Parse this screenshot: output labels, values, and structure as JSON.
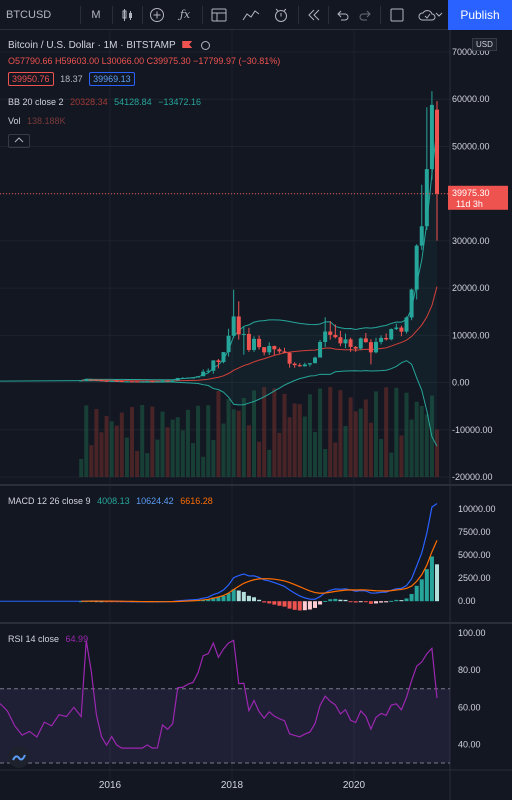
{
  "toolbar": {
    "symbol": "BTCUSD",
    "interval": "M",
    "publish_label": "Publish",
    "icons": [
      "candles-icon",
      "add-indicator-icon",
      "fx-icon",
      "template-icon",
      "alert-icon",
      "replay-icon",
      "undo-icon",
      "redo-icon",
      "layout-icon",
      "cloud-save-icon"
    ]
  },
  "header": {
    "title": "Bitcoin / U.S. Dollar · 1M · BITSTAMP",
    "ohlc": "O57790.66 H59603.00 L30066.00 C39975.30 −17799.97 (−30.81%)",
    "bid": "39950.76",
    "spread": "18.37",
    "ask": "39969.13",
    "bb_name": "BB 20 close 2",
    "bb_values": [
      "20328.34",
      "54128.84",
      "−13472.16"
    ],
    "vol_name": "Vol",
    "vol_value": "138.188K",
    "price_label": "39975.30",
    "price_countdown": "11d 3h",
    "currency": "USD"
  },
  "macd_legend": {
    "name": "MACD 12 26 close 9",
    "values": [
      "4008.13",
      "10624.42",
      "6616.28"
    ]
  },
  "rsi_legend": {
    "name": "RSI 14 close",
    "value": "64.99"
  },
  "colors": {
    "up": "#26a69a",
    "down": "#ef5350",
    "bb_band": "#26a69a",
    "bb_basis": "#d4413b",
    "macd": "#2962ff",
    "signal": "#ff6d00",
    "rsi": "#9c27b0",
    "bg": "#131722"
  },
  "chart_data": [
    {
      "type": "candlestick",
      "title": "Bitcoin / U.S. Dollar · 1M · BITSTAMP",
      "ylim": [
        -22000,
        72000
      ],
      "yticks": [
        70000,
        60000,
        50000,
        40000,
        30000,
        20000,
        10000,
        0,
        -10000,
        -20000
      ],
      "xticks": [
        "2016",
        "2018",
        "2020"
      ],
      "x_start": "2014-05",
      "candles": [
        [
          0,
          0,
          1,
          0,
          0
        ],
        [
          0,
          0,
          1,
          0,
          1
        ],
        [
          0,
          0,
          1,
          0,
          0
        ],
        [
          0,
          0,
          1,
          0,
          0
        ],
        [
          0,
          0,
          1,
          0,
          1
        ],
        [
          0,
          0,
          1,
          0,
          0
        ],
        [
          0,
          0,
          1,
          0,
          0
        ],
        [
          0,
          0,
          1,
          0,
          1
        ],
        [
          0,
          0,
          1,
          0,
          0
        ],
        [
          0,
          0,
          1,
          0,
          0
        ],
        [
          0,
          0,
          1,
          0,
          0
        ],
        [
          0,
          0,
          1,
          0,
          1
        ],
        [
          0,
          0,
          1,
          0,
          0
        ],
        [
          0,
          0,
          1,
          0,
          0
        ],
        [
          0,
          0,
          1,
          0,
          1
        ],
        [
          0,
          0,
          1,
          0,
          0
        ],
        [
          0,
          0,
          1,
          0,
          0
        ],
        [
          0,
          0,
          1,
          0,
          1
        ],
        [
          0,
          0,
          1,
          0,
          0
        ],
        [
          0,
          1,
          1,
          0,
          1
        ],
        [
          1,
          1,
          1,
          0,
          0
        ],
        [
          1,
          1,
          1,
          0,
          1
        ],
        [
          1,
          1,
          1,
          0,
          1
        ],
        [
          1,
          1,
          1,
          1,
          1
        ],
        [
          1,
          1,
          1,
          1,
          1
        ],
        [
          1,
          1,
          1,
          1,
          1
        ],
        [
          1,
          1,
          1,
          1,
          1
        ],
        [
          1,
          1,
          1,
          1,
          1
        ],
        [
          1,
          1,
          1,
          1,
          1
        ],
        [
          1,
          1,
          1,
          1,
          1
        ],
        [
          1,
          1,
          1,
          1,
          1
        ],
        [
          1,
          1,
          1,
          1,
          1
        ],
        [
          1,
          1,
          1,
          1,
          1
        ]
      ],
      "ohlc_note": "monthly candles",
      "series_ohlc": [
        [
          420,
          450,
          410,
          440
        ],
        [
          440,
          640,
          430,
          630
        ],
        [
          630,
          650,
          560,
          580
        ],
        [
          580,
          600,
          470,
          480
        ],
        [
          480,
          510,
          380,
          390
        ],
        [
          390,
          410,
          330,
          340
        ],
        [
          340,
          420,
          300,
          380
        ],
        [
          380,
          410,
          300,
          320
        ],
        [
          320,
          330,
          160,
          220
        ],
        [
          220,
          290,
          200,
          250
        ],
        [
          250,
          300,
          220,
          240
        ],
        [
          240,
          260,
          220,
          230
        ],
        [
          230,
          260,
          210,
          230
        ],
        [
          230,
          320,
          230,
          280
        ],
        [
          280,
          300,
          200,
          230
        ],
        [
          230,
          250,
          210,
          240
        ],
        [
          240,
          500,
          230,
          420
        ],
        [
          420,
          460,
          300,
          380
        ],
        [
          380,
          440,
          340,
          430
        ],
        [
          430,
          1000,
          420,
          960
        ],
        [
          960,
          1150,
          760,
          970
        ],
        [
          970,
          1050,
          920,
          1040
        ],
        [
          1040,
          1120,
          900,
          1080
        ],
        [
          1080,
          1300,
          1060,
          1350
        ],
        [
          1350,
          2780,
          1350,
          2300
        ],
        [
          2300,
          2980,
          2100,
          2500
        ],
        [
          2500,
          4700,
          1900,
          4700
        ],
        [
          4700,
          4980,
          3000,
          4350
        ],
        [
          4350,
          6470,
          4100,
          6450
        ],
        [
          6450,
          11400,
          5500,
          9900
        ],
        [
          9900,
          19660,
          9500,
          14000
        ],
        [
          14000,
          17200,
          9100,
          10200
        ],
        [
          10200,
          11800,
          5900,
          10300
        ],
        [
          10300,
          11600,
          6500,
          6900
        ],
        [
          6900,
          9800,
          6500,
          9250
        ],
        [
          9250,
          9990,
          7000,
          7500
        ],
        [
          7500,
          6800,
          5750,
          6400
        ],
        [
          6400,
          8500,
          5850,
          7750
        ],
        [
          7750,
          7800,
          5850,
          7040
        ],
        [
          7040,
          7400,
          6200,
          6600
        ],
        [
          6600,
          7380,
          6400,
          6300
        ],
        [
          6300,
          6450,
          3160,
          4000
        ],
        [
          4000,
          4300,
          3140,
          3690
        ],
        [
          3690,
          4100,
          3350,
          3440
        ],
        [
          3440,
          4200,
          3380,
          3830
        ],
        [
          3830,
          4120,
          3390,
          4100
        ],
        [
          4100,
          5500,
          4050,
          5300
        ],
        [
          5300,
          9000,
          5300,
          8600
        ],
        [
          8600,
          13800,
          7500,
          10800
        ],
        [
          10800,
          13000,
          9100,
          10100
        ],
        [
          10100,
          12300,
          9350,
          9600
        ],
        [
          9600,
          10950,
          7700,
          8300
        ],
        [
          8300,
          10400,
          7300,
          9150
        ],
        [
          9150,
          9500,
          6500,
          7550
        ],
        [
          7550,
          7750,
          6500,
          7200
        ],
        [
          7200,
          9550,
          6900,
          9350
        ],
        [
          9350,
          10500,
          8450,
          8550
        ],
        [
          8550,
          9200,
          3850,
          6400
        ],
        [
          6400,
          9500,
          6200,
          8600
        ],
        [
          8600,
          10000,
          8100,
          9450
        ],
        [
          9450,
          10400,
          8900,
          9140
        ],
        [
          9140,
          11450,
          8950,
          11330
        ],
        [
          11330,
          12470,
          11100,
          11650
        ],
        [
          11650,
          12050,
          9800,
          10780
        ],
        [
          10780,
          14000,
          10400,
          13780
        ],
        [
          13780,
          19900,
          13200,
          19700
        ],
        [
          19700,
          29300,
          17600,
          29000
        ],
        [
          29000,
          41900,
          28100,
          33100
        ],
        [
          33100,
          58300,
          32300,
          45200
        ],
        [
          45200,
          61700,
          43000,
          58800
        ],
        [
          57790,
          59603,
          30066,
          39975
        ]
      ],
      "bb_upper": [
        20328.34,
        54128.84
      ],
      "bb_basis_end": 20328.34,
      "bb_upper_end": 54128.84,
      "bb_lower_end": -13472.16,
      "last_price": 39975.3
    },
    {
      "type": "macd",
      "title": "MACD 12 26 close 9",
      "ylim": [
        -1500,
        11500
      ],
      "yticks": [
        10000,
        7500,
        5000,
        2500,
        0
      ],
      "macd_end": 10624.42,
      "signal_end": 6616.28,
      "hist_end": 4008.13
    },
    {
      "type": "line",
      "title": "RSI 14 close",
      "ylim": [
        30,
        100
      ],
      "yticks": [
        100,
        80,
        60,
        40
      ],
      "bands": [
        70,
        30
      ],
      "rsi_end": 64.99
    }
  ]
}
